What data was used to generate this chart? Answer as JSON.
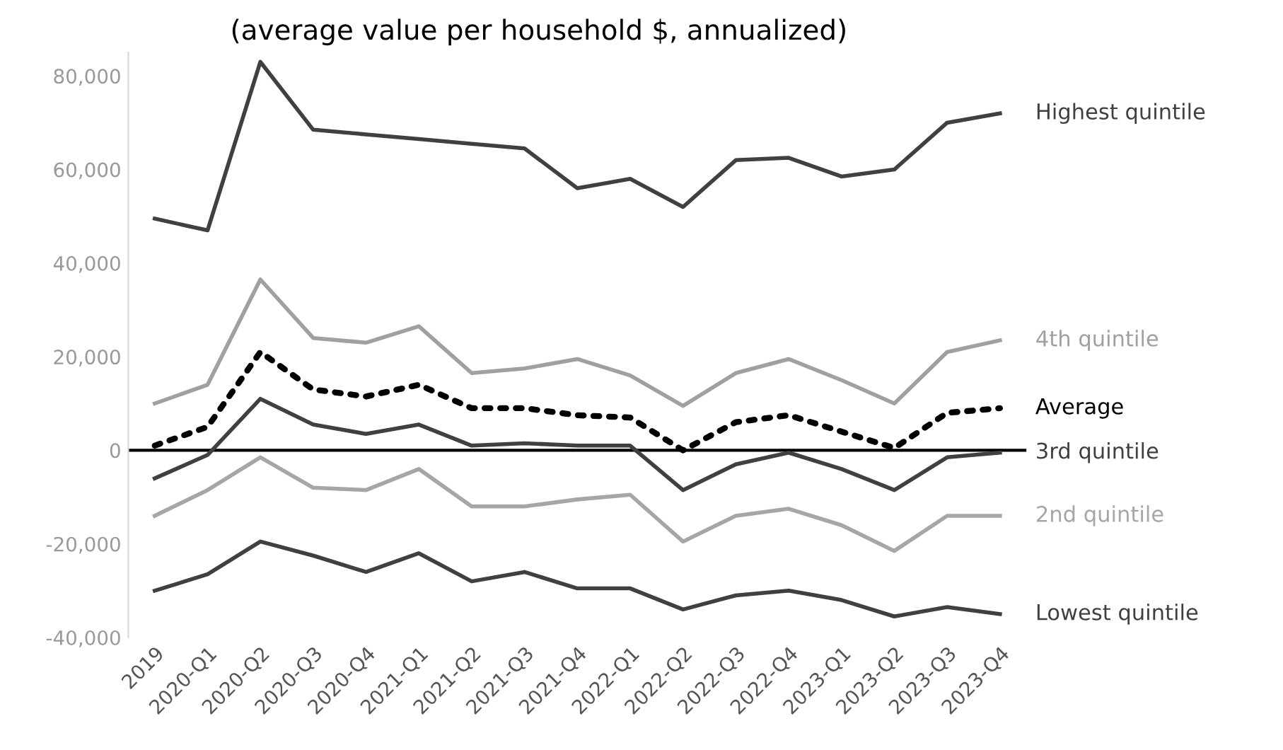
{
  "chart_data": {
    "type": "line",
    "title": "(average value per household $, annualized)",
    "categories": [
      "2019",
      "2020-Q1",
      "2020-Q2",
      "2020-Q3",
      "2020-Q4",
      "2021-Q1",
      "2021-Q2",
      "2021-Q3",
      "2021-Q4",
      "2022-Q1",
      "2022-Q2",
      "2022-Q3",
      "2022-Q4",
      "2023-Q1",
      "2023-Q2",
      "2023-Q3",
      "2023-Q4"
    ],
    "series": [
      {
        "name": "Highest quintile",
        "color": "#404040",
        "line_style": "solid",
        "values": [
          49500,
          47000,
          83000,
          68500,
          67500,
          66500,
          65500,
          64500,
          56000,
          58000,
          52000,
          62000,
          62500,
          58500,
          60000,
          70000,
          72000
        ]
      },
      {
        "name": "4th quintile",
        "color": "#a0a0a0",
        "line_style": "solid",
        "values": [
          10000,
          14000,
          36500,
          24000,
          23000,
          26500,
          16500,
          17500,
          19500,
          16000,
          9500,
          16500,
          19500,
          15000,
          10000,
          21000,
          23500
        ]
      },
      {
        "name": "Average",
        "color": "#000000",
        "line_style": "dotted",
        "values": [
          1000,
          5000,
          21000,
          13000,
          11500,
          14000,
          9000,
          9000,
          7500,
          7000,
          0,
          6000,
          7500,
          4000,
          500,
          8000,
          9000
        ]
      },
      {
        "name": "3rd quintile",
        "color": "#404040",
        "line_style": "solid",
        "values": [
          -6000,
          -1000,
          11000,
          5500,
          3500,
          5500,
          1000,
          1500,
          1000,
          1000,
          -8500,
          -3000,
          -500,
          -4000,
          -8500,
          -1500,
          -500
        ]
      },
      {
        "name": "2nd quintile",
        "color": "#a6a6a6",
        "line_style": "solid",
        "values": [
          -14000,
          -8500,
          -1500,
          -8000,
          -8500,
          -4000,
          -12000,
          -12000,
          -10500,
          -9500,
          -19500,
          -14000,
          -12500,
          -16000,
          -21500,
          -14000,
          -14000
        ]
      },
      {
        "name": "Lowest quintile",
        "color": "#404040",
        "line_style": "solid",
        "values": [
          -30000,
          -26500,
          -19500,
          -22500,
          -26000,
          -22000,
          -28000,
          -26000,
          -29500,
          -29500,
          -34000,
          -31000,
          -30000,
          -32000,
          -35500,
          -33500,
          -35000
        ]
      }
    ],
    "ylim": [
      -40000,
      85000
    ],
    "yticks": [
      {
        "value": -40000,
        "label": "-40,000"
      },
      {
        "value": -20000,
        "label": "-20,000"
      },
      0,
      {
        "value": 20000,
        "label": "20,000"
      },
      {
        "value": 40000,
        "label": "40,000"
      },
      {
        "value": 60000,
        "label": "60,000"
      },
      {
        "value": 80000,
        "label": "80,000"
      }
    ],
    "ref_lines": [
      {
        "axis": "y",
        "value": 0,
        "color": "#000000",
        "line_style": "solid"
      }
    ],
    "grid": false,
    "legend": false,
    "marker": "none"
  }
}
